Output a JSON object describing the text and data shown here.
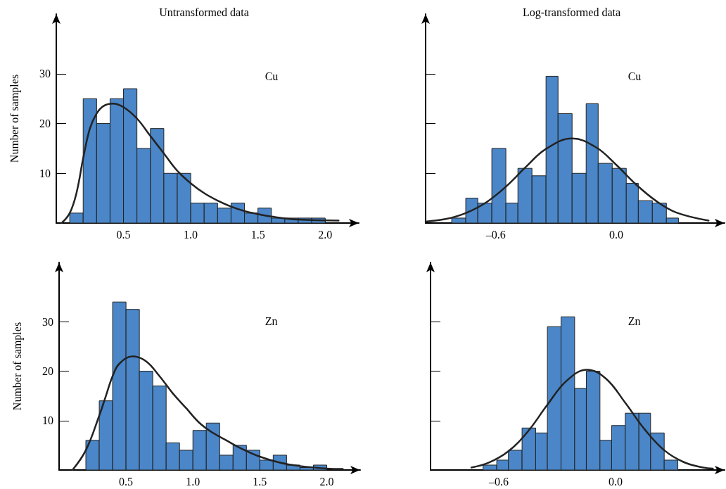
{
  "chart_data": [
    {
      "type": "histogram",
      "title": "Untransformed data",
      "ylabel": "Number of samples",
      "annotations": [
        "Cu"
      ],
      "xlim": [
        0,
        2.25
      ],
      "ylim": [
        0,
        42
      ],
      "xticks": [
        {
          "value": 0.5,
          "label": "0.5"
        },
        {
          "value": 1,
          "label": "1.0"
        },
        {
          "value": 1.5,
          "label": "1.5"
        },
        {
          "value": 2,
          "label": "2.0"
        }
      ],
      "yticks": [
        10,
        20,
        30
      ],
      "marker": "none",
      "series": [
        {
          "color": "#4a86c8",
          "bins": [
            0.1,
            0.2,
            0.3,
            0.4,
            0.5,
            0.6,
            0.7,
            0.8,
            0.9,
            1.0,
            1.1,
            1.2,
            1.3,
            1.4,
            1.5,
            1.6,
            1.7,
            1.8,
            1.9,
            2.0
          ],
          "values": [
            2,
            25,
            20,
            25,
            27,
            15,
            19,
            10,
            10,
            4,
            4,
            3,
            4,
            2,
            3,
            1,
            1,
            1,
            1
          ]
        },
        {
          "type": "line",
          "color": "#222222",
          "x": [
            0.04,
            0.1,
            0.15,
            0.2,
            0.25,
            0.3,
            0.35,
            0.42,
            0.5,
            0.6,
            0.7,
            0.8,
            0.9,
            1.0,
            1.1,
            1.2,
            1.3,
            1.4,
            1.5,
            1.6,
            1.8,
            2.1
          ],
          "values": [
            0,
            2,
            6,
            13,
            19,
            22,
            23.5,
            24,
            23.3,
            21,
            17.5,
            14,
            10.5,
            8,
            6,
            4.5,
            3.3,
            2.4,
            1.8,
            1.3,
            0.7,
            0.5
          ]
        }
      ]
    },
    {
      "type": "histogram",
      "title": "Log-transformed data",
      "annotations": [
        "Cu"
      ],
      "xlim": [
        -0.95,
        0.54
      ],
      "ylim": [
        0,
        42
      ],
      "tick_labels": "x",
      "xticks": [
        {
          "value": -0.6,
          "label": "–0.6"
        },
        {
          "value": 0,
          "label": "0.0"
        }
      ],
      "yticks": [
        10,
        20,
        30
      ],
      "marker": "none",
      "series": [
        {
          "color": "#4a86c8",
          "bins": [
            -0.82,
            -0.75,
            -0.69,
            -0.62,
            -0.55,
            -0.49,
            -0.42,
            -0.35,
            -0.29,
            -0.22,
            -0.15,
            -0.09,
            -0.02,
            0.05,
            0.11,
            0.18,
            0.25,
            0.31
          ],
          "values": [
            1,
            5,
            4,
            15,
            4,
            11,
            9.5,
            29.5,
            22,
            10,
            24,
            12,
            11,
            8,
            4.5,
            4,
            1
          ]
        },
        {
          "type": "line",
          "color": "#222222",
          "x": [
            -0.95,
            -0.85,
            -0.75,
            -0.65,
            -0.55,
            -0.45,
            -0.35,
            -0.22,
            -0.1,
            0,
            0.1,
            0.2,
            0.3,
            0.46
          ],
          "values": [
            0.3,
            0.8,
            2,
            4.1,
            7.3,
            11.3,
            14.9,
            17,
            15.2,
            11.7,
            7.7,
            4.4,
            2.1,
            0.5
          ]
        }
      ]
    },
    {
      "type": "histogram",
      "ylabel": "Number of samples",
      "annotations": [
        "Zn"
      ],
      "xlim": [
        0,
        2.25
      ],
      "ylim": [
        0,
        42
      ],
      "xticks": [
        {
          "value": 0.5,
          "label": "0.5"
        },
        {
          "value": 1,
          "label": "1.0"
        },
        {
          "value": 1.5,
          "label": "1.5"
        },
        {
          "value": 2,
          "label": "2.0"
        }
      ],
      "yticks": [
        10,
        20,
        30
      ],
      "marker": "none",
      "series": [
        {
          "color": "#4a86c8",
          "bins": [
            0.2,
            0.3,
            0.4,
            0.5,
            0.6,
            0.7,
            0.8,
            0.9,
            1.0,
            1.1,
            1.2,
            1.3,
            1.4,
            1.5,
            1.6,
            1.7,
            1.8,
            1.9,
            2.0
          ],
          "values": [
            6,
            14,
            34,
            32.5,
            20,
            17,
            5.5,
            4,
            8,
            9.5,
            3,
            5,
            4,
            2,
            3,
            1,
            0.5,
            1
          ]
        },
        {
          "type": "line",
          "color": "#222222",
          "x": [
            0.1,
            0.2,
            0.3,
            0.35,
            0.4,
            0.45,
            0.55,
            0.65,
            0.75,
            0.85,
            0.95,
            1.05,
            1.15,
            1.25,
            1.35,
            1.5,
            1.65,
            1.8,
            2.0,
            2.12
          ],
          "values": [
            0,
            4,
            11,
            15,
            19,
            21.5,
            23,
            22,
            19,
            15.5,
            12.5,
            9.5,
            7.5,
            6,
            4.5,
            2.7,
            1.5,
            0.8,
            0.3,
            0.2
          ]
        }
      ]
    },
    {
      "type": "histogram",
      "annotations": [
        "Zn"
      ],
      "xlim": [
        -0.95,
        0.56
      ],
      "ylim": [
        0,
        42
      ],
      "tick_labels": "x",
      "xticks": [
        {
          "value": -0.6,
          "label": "–0.6"
        },
        {
          "value": 0,
          "label": "0.0"
        }
      ],
      "yticks": [
        10,
        20,
        30
      ],
      "marker": "none",
      "series": [
        {
          "color": "#4a86c8",
          "bins": [
            -0.68,
            -0.61,
            -0.55,
            -0.48,
            -0.41,
            -0.35,
            -0.28,
            -0.21,
            -0.15,
            -0.08,
            -0.02,
            0.05,
            0.12,
            0.18,
            0.25,
            0.32
          ],
          "values": [
            1,
            2,
            4,
            8.5,
            7.5,
            29,
            31,
            16.5,
            20,
            6,
            9,
            11.5,
            11.5,
            7.5,
            2
          ]
        },
        {
          "type": "line",
          "color": "#222222",
          "x": [
            -0.74,
            -0.65,
            -0.55,
            -0.45,
            -0.35,
            -0.25,
            -0.146,
            -0.05,
            0.05,
            0.15,
            0.25,
            0.35,
            0.45,
            0.5
          ],
          "values": [
            0.5,
            1.5,
            3.8,
            7.8,
            13.2,
            18.1,
            20.3,
            18.5,
            13.6,
            8.2,
            4,
            1.6,
            0.5,
            0.3
          ]
        }
      ]
    }
  ]
}
